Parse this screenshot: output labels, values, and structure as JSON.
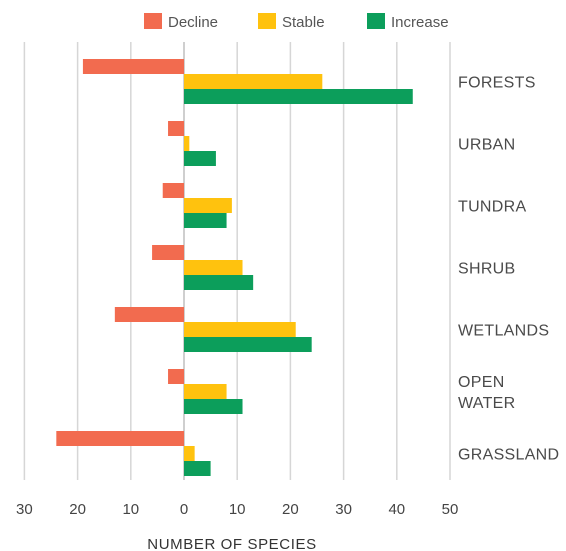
{
  "chart_data": {
    "type": "bar",
    "orientation": "horizontal",
    "categories": [
      "FORESTS",
      "URBAN",
      "TUNDRA",
      "SHRUB",
      "WETLANDS",
      "OPEN\nWATER",
      "GRASSLAND"
    ],
    "series": [
      {
        "name": "Decline",
        "color": "#F26B4F",
        "values": [
          -19,
          -3,
          -4,
          -6,
          -13,
          -3,
          -24
        ]
      },
      {
        "name": "Stable",
        "color": "#FFC20E",
        "values": [
          26,
          1,
          9,
          11,
          21,
          8,
          2
        ]
      },
      {
        "name": "Increase",
        "color": "#0C9E5B",
        "values": [
          43,
          6,
          8,
          13,
          24,
          11,
          5
        ]
      }
    ],
    "xticks": [
      -30,
      -20,
      -10,
      0,
      10,
      20,
      30,
      40,
      50
    ],
    "xtick_labels": [
      "30",
      "20",
      "10",
      "0",
      "10",
      "20",
      "30",
      "40",
      "50"
    ],
    "xlim": [
      -30,
      50
    ],
    "xlabel": "NUMBER OF SPECIES",
    "ylabel": "",
    "title": "",
    "legend_position": "top",
    "grid": "vertical"
  }
}
